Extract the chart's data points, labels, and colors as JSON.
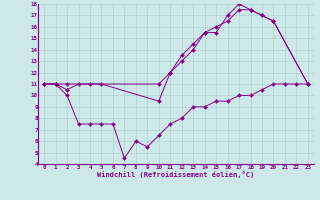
{
  "xlabel": "Windchill (Refroidissement éolien,°C)",
  "bg_color": "#cce8e8",
  "line_color": "#880088",
  "grid_color": "#aacccc",
  "xlim": [
    -0.5,
    23.5
  ],
  "ylim": [
    4,
    18
  ],
  "xticks": [
    0,
    1,
    2,
    3,
    4,
    5,
    6,
    7,
    8,
    9,
    10,
    11,
    12,
    13,
    14,
    15,
    16,
    17,
    18,
    19,
    20,
    21,
    22,
    23
  ],
  "yticks": [
    4,
    5,
    6,
    7,
    8,
    9,
    10,
    11,
    12,
    13,
    14,
    15,
    16,
    17,
    18
  ],
  "line1_x": [
    0,
    1,
    2,
    10,
    11,
    12,
    13,
    14,
    15,
    16,
    17,
    18,
    19,
    20,
    23
  ],
  "line1_y": [
    11,
    11,
    11,
    11,
    12,
    13,
    14,
    15.5,
    16,
    16.5,
    17.5,
    17.5,
    17,
    16.5,
    11
  ],
  "line2_x": [
    0,
    1,
    2,
    3,
    4,
    5,
    10,
    11,
    12,
    13,
    14,
    15,
    16,
    17,
    18,
    19,
    20,
    23
  ],
  "line2_y": [
    11,
    11,
    10.5,
    11,
    11,
    11,
    9.5,
    12,
    13.5,
    14.5,
    15.5,
    15.5,
    17,
    18,
    17.5,
    17,
    16.5,
    11
  ],
  "line3_x": [
    0,
    1,
    2,
    3,
    4,
    5,
    6,
    7,
    8,
    9,
    10,
    11,
    12,
    13,
    14,
    15,
    16,
    17,
    18,
    19,
    20,
    21,
    22,
    23
  ],
  "line3_y": [
    11,
    11,
    10,
    7.5,
    7.5,
    7.5,
    7.5,
    4.5,
    6,
    5.5,
    6.5,
    7.5,
    8,
    9,
    9,
    9.5,
    9.5,
    10,
    10,
    10.5,
    11,
    11,
    11,
    11
  ]
}
